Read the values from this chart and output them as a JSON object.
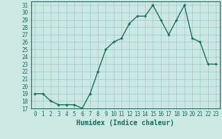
{
  "x": [
    0,
    1,
    2,
    3,
    4,
    5,
    6,
    7,
    8,
    9,
    10,
    11,
    12,
    13,
    14,
    15,
    16,
    17,
    18,
    19,
    20,
    21,
    22,
    23
  ],
  "y": [
    19,
    19,
    18,
    17.5,
    17.5,
    17.5,
    17,
    19,
    22,
    25,
    26,
    26.5,
    28.5,
    29.5,
    29.5,
    31,
    29,
    27,
    29,
    31,
    26.5,
    26,
    23,
    23
  ],
  "line_color": "#1a6b5e",
  "marker": "+",
  "bg_color": "#cce8e3",
  "grid_color": "#99ccc4",
  "xlabel": "Humidex (Indice chaleur)",
  "ylim": [
    17,
    31.5
  ],
  "xlim": [
    -0.5,
    23.5
  ],
  "yticks": [
    17,
    18,
    19,
    20,
    21,
    22,
    23,
    24,
    25,
    26,
    27,
    28,
    29,
    30,
    31
  ],
  "xticks": [
    0,
    1,
    2,
    3,
    4,
    5,
    6,
    7,
    8,
    9,
    10,
    11,
    12,
    13,
    14,
    15,
    16,
    17,
    18,
    19,
    20,
    21,
    22,
    23
  ],
  "font_color": "#1a6b5e",
  "tick_label_size": 5.5,
  "xlabel_size": 7,
  "linewidth": 1.0,
  "markersize": 3.5,
  "markeredgewidth": 1.0
}
